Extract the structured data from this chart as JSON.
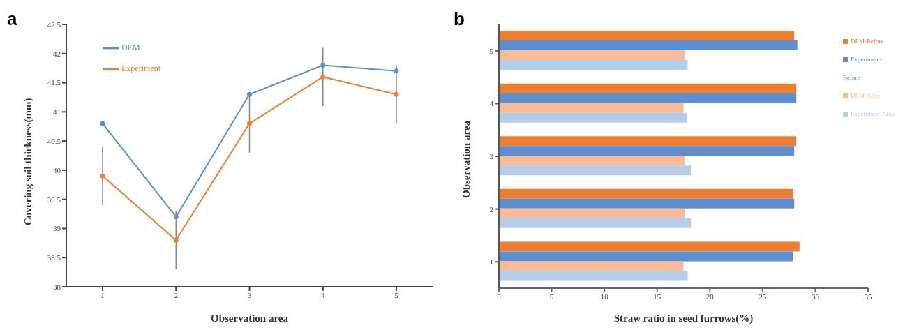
{
  "chart_data": [
    {
      "type": "line",
      "title": "a",
      "xlabel": "Observation area",
      "ylabel": "Covering soil thickness(mm)",
      "categories": [
        "1",
        "2",
        "3",
        "4",
        "5"
      ],
      "series": [
        {
          "name": "DEM",
          "color": "#5b8fd0",
          "values": [
            40.8,
            39.2,
            41.3,
            41.8,
            41.7
          ]
        },
        {
          "name": "Experiment",
          "color": "#ed7d31",
          "values": [
            39.9,
            38.8,
            40.8,
            41.6,
            41.3
          ],
          "errors": [
            0.5,
            0.5,
            0.5,
            0.5,
            0.5
          ]
        }
      ],
      "ylim": [
        38,
        42.5
      ],
      "yticks": [
        38,
        38.5,
        39,
        39.5,
        40,
        40.5,
        41,
        41.5,
        42,
        42.5
      ],
      "legend": "top left",
      "marker": "circle",
      "line_style": "solid",
      "grid": false
    },
    {
      "type": "bar",
      "orientation": "horizontal",
      "title": "b",
      "xlabel": "Straw ratio in seed furrows(%)",
      "ylabel": "Observation area",
      "categories": [
        "5",
        "4",
        "3",
        "2",
        "1"
      ],
      "series": [
        {
          "name": "DEM-Before",
          "color": "#ed7d31",
          "values": [
            28.0,
            28.2,
            28.2,
            27.9,
            28.5
          ]
        },
        {
          "name": "Experiment-Before",
          "color": "#5b8fd0",
          "values": [
            28.3,
            28.2,
            28.0,
            28.0,
            27.9
          ]
        },
        {
          "name": "DEM-After",
          "color": "#f8bc9a",
          "values": [
            17.6,
            17.5,
            17.6,
            17.6,
            17.5
          ]
        },
        {
          "name": "Experiment-After",
          "color": "#b6cdea",
          "values": [
            17.9,
            17.8,
            18.2,
            18.2,
            17.9
          ]
        }
      ],
      "xlim": [
        0,
        35
      ],
      "xticks": [
        0,
        5,
        10,
        15,
        20,
        25,
        30,
        35
      ],
      "legend": "right",
      "grid": false
    }
  ]
}
